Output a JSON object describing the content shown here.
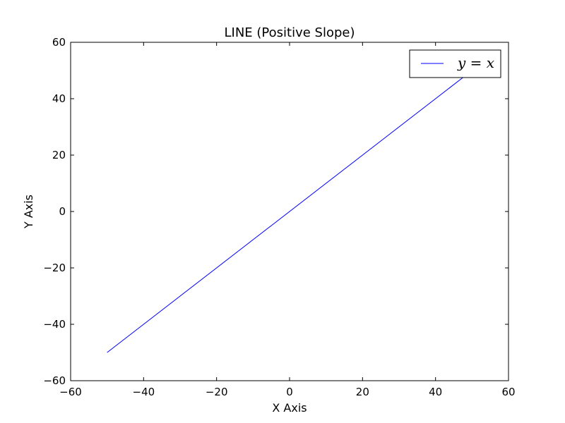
{
  "chart_data": {
    "type": "line",
    "title": "LINE (Positive Slope)",
    "xlabel": "X Axis",
    "ylabel": "Y Axis",
    "xlim": [
      -60,
      60
    ],
    "ylim": [
      -60,
      60
    ],
    "xticks": [
      -60,
      -40,
      -20,
      0,
      20,
      40,
      60
    ],
    "yticks": [
      -60,
      -40,
      -20,
      0,
      20,
      40,
      60
    ],
    "xtick_labels": [
      "−60",
      "−40",
      "−20",
      "0",
      "20",
      "40",
      "60"
    ],
    "ytick_labels": [
      "−60",
      "−40",
      "−20",
      "0",
      "20",
      "40",
      "60"
    ],
    "grid": false,
    "legend_position": "top-right",
    "series": [
      {
        "name": "y = x",
        "color": "#0000ff",
        "x": [
          -50,
          50
        ],
        "y": [
          -50,
          50
        ]
      }
    ]
  }
}
